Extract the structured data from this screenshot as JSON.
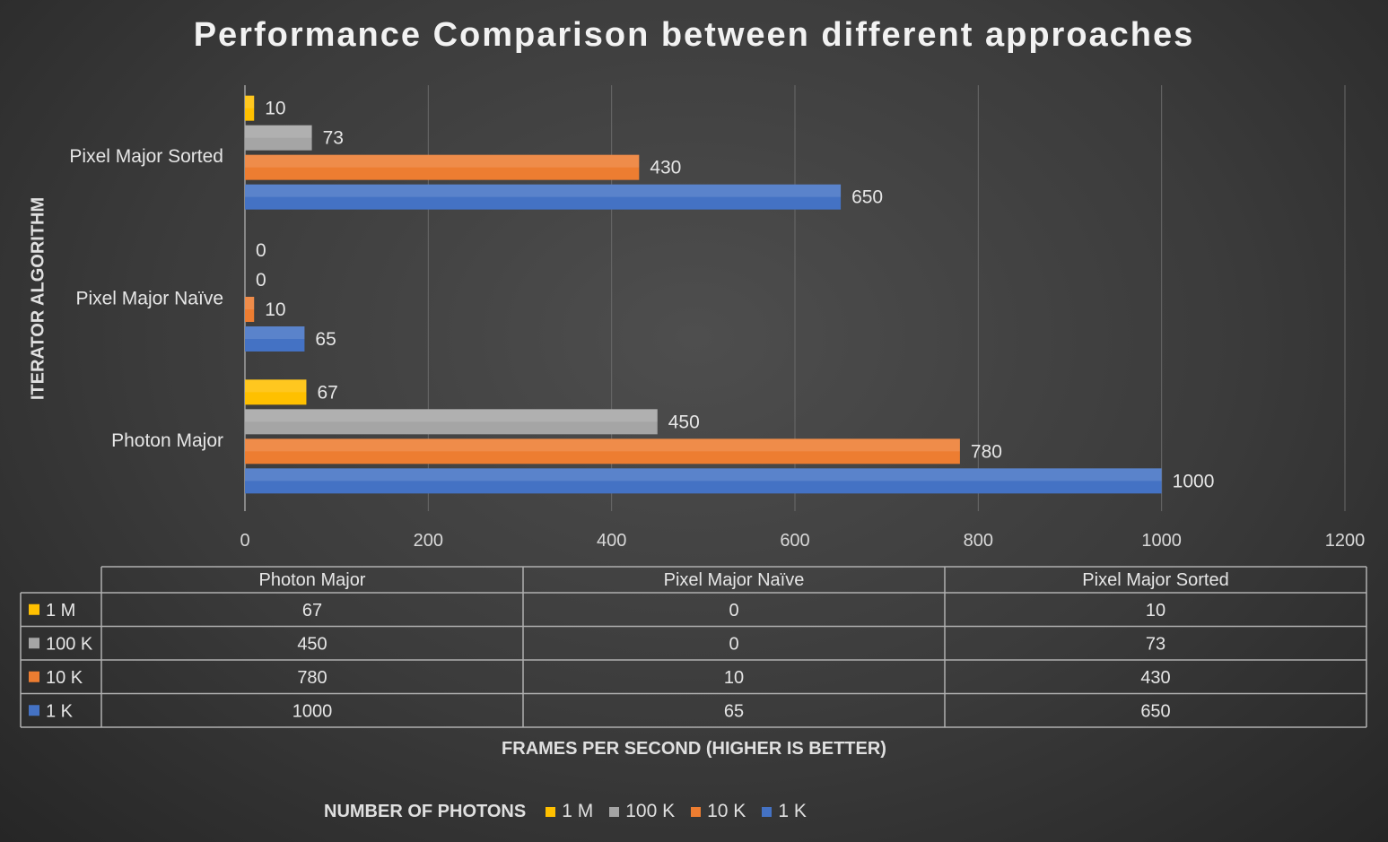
{
  "chart_data": {
    "type": "bar",
    "orientation": "horizontal",
    "title": "Performance Comparison between different approaches",
    "xlabel": "FRAMES PER SECOND (HIGHER IS BETTER)",
    "ylabel": "ITERATOR ALGORITHM",
    "xlim": [
      0,
      1200
    ],
    "x_ticks": [
      "0",
      "200",
      "400",
      "600",
      "800",
      "1000",
      "1200"
    ],
    "categories": [
      "Photon Major",
      "Pixel Major Naïve",
      "Pixel Major Sorted"
    ],
    "series": [
      {
        "name": "1 M",
        "color": "#ffc000",
        "values": [
          67,
          0,
          10
        ]
      },
      {
        "name": "100 K",
        "color": "#a5a5a5",
        "values": [
          450,
          0,
          73
        ]
      },
      {
        "name": "10 K",
        "color": "#ed7d31",
        "values": [
          780,
          10,
          430
        ]
      },
      {
        "name": "1 K",
        "color": "#4472c4",
        "values": [
          1000,
          65,
          650
        ]
      }
    ],
    "grid": true,
    "legend": {
      "title": "NUMBER OF PHOTONS",
      "position": "bottom"
    },
    "data_table": true
  }
}
